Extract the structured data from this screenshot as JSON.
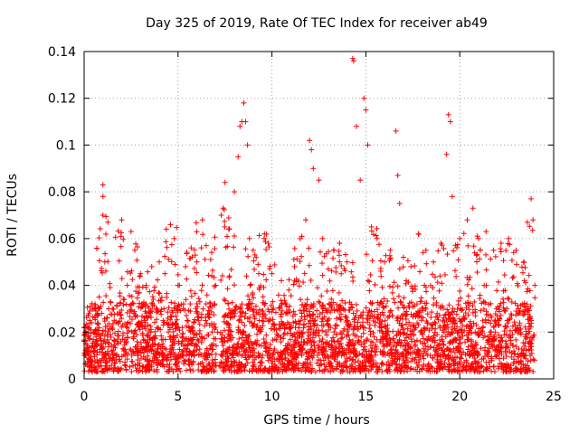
{
  "chart_data": {
    "type": "scatter",
    "title": "Day 325 of 2019, Rate Of TEC Index for receiver ab49",
    "xlabel": "GPS time / hours",
    "ylabel": "ROTI / TECUs",
    "xlim": [
      0,
      25
    ],
    "ylim": [
      0,
      0.14
    ],
    "xticks": [
      0,
      5,
      10,
      15,
      20,
      25
    ],
    "xtick_labels": [
      "0",
      "5",
      "10",
      "15",
      "20",
      "25"
    ],
    "yticks": [
      0,
      0.02,
      0.04,
      0.06,
      0.08,
      0.1,
      0.12,
      0.14
    ],
    "ytick_labels": [
      "0",
      "0.02",
      "0.04",
      "0.06",
      "0.08",
      "0.1",
      "0.12",
      "0.14"
    ],
    "grid": true,
    "marker": "+",
    "color": "#ff0000",
    "data_range_x": [
      0,
      24
    ],
    "series": [
      {
        "name": "ROTI",
        "points": [
          [
            0.1,
            0.015
          ],
          [
            0.3,
            0.025
          ],
          [
            0.5,
            0.02
          ],
          [
            0.8,
            0.035
          ],
          [
            1.0,
            0.083
          ],
          [
            1.0,
            0.078
          ],
          [
            1.0,
            0.07
          ],
          [
            1.1,
            0.05
          ],
          [
            1.3,
            0.03
          ],
          [
            1.6,
            0.025
          ],
          [
            2.0,
            0.068
          ],
          [
            2.3,
            0.04
          ],
          [
            2.5,
            0.063
          ],
          [
            2.7,
            0.055
          ],
          [
            3.0,
            0.045
          ],
          [
            3.3,
            0.04
          ],
          [
            3.6,
            0.048
          ],
          [
            4.0,
            0.05
          ],
          [
            4.3,
            0.045
          ],
          [
            4.6,
            0.066
          ],
          [
            4.8,
            0.06
          ],
          [
            5.0,
            0.04
          ],
          [
            5.4,
            0.048
          ],
          [
            5.7,
            0.056
          ],
          [
            6.0,
            0.05
          ],
          [
            6.3,
            0.068
          ],
          [
            6.5,
            0.057
          ],
          [
            6.8,
            0.044
          ],
          [
            7.0,
            0.04
          ],
          [
            7.1,
            0.02
          ],
          [
            7.3,
            0.07
          ],
          [
            7.4,
            0.073
          ],
          [
            7.5,
            0.084
          ],
          [
            7.7,
            0.064
          ],
          [
            8.0,
            0.08
          ],
          [
            8.2,
            0.095
          ],
          [
            8.3,
            0.108
          ],
          [
            8.4,
            0.11
          ],
          [
            8.5,
            0.118
          ],
          [
            8.6,
            0.11
          ],
          [
            8.7,
            0.1
          ],
          [
            8.8,
            0.06
          ],
          [
            9.0,
            0.055
          ],
          [
            9.3,
            0.045
          ],
          [
            9.6,
            0.062
          ],
          [
            9.8,
            0.058
          ],
          [
            10.0,
            0.045
          ],
          [
            10.5,
            0.042
          ],
          [
            10.9,
            0.038
          ],
          [
            11.2,
            0.048
          ],
          [
            11.5,
            0.06
          ],
          [
            11.8,
            0.068
          ],
          [
            12.0,
            0.102
          ],
          [
            12.1,
            0.098
          ],
          [
            12.2,
            0.09
          ],
          [
            12.5,
            0.085
          ],
          [
            12.7,
            0.06
          ],
          [
            13.0,
            0.047
          ],
          [
            13.3,
            0.055
          ],
          [
            13.6,
            0.058
          ],
          [
            14.0,
            0.05
          ],
          [
            14.3,
            0.137
          ],
          [
            14.35,
            0.136
          ],
          [
            14.5,
            0.108
          ],
          [
            14.7,
            0.085
          ],
          [
            14.9,
            0.12
          ],
          [
            15.0,
            0.115
          ],
          [
            15.1,
            0.1
          ],
          [
            15.3,
            0.065
          ],
          [
            15.6,
            0.06
          ],
          [
            16.0,
            0.05
          ],
          [
            16.3,
            0.055
          ],
          [
            16.6,
            0.106
          ],
          [
            16.7,
            0.087
          ],
          [
            16.8,
            0.075
          ],
          [
            17.0,
            0.052
          ],
          [
            17.4,
            0.048
          ],
          [
            17.8,
            0.062
          ],
          [
            18.2,
            0.055
          ],
          [
            18.6,
            0.05
          ],
          [
            19.0,
            0.058
          ],
          [
            19.3,
            0.096
          ],
          [
            19.4,
            0.113
          ],
          [
            19.5,
            0.11
          ],
          [
            19.6,
            0.078
          ],
          [
            20.0,
            0.06
          ],
          [
            20.4,
            0.068
          ],
          [
            20.7,
            0.073
          ],
          [
            21.0,
            0.06
          ],
          [
            21.4,
            0.063
          ],
          [
            21.8,
            0.055
          ],
          [
            22.2,
            0.058
          ],
          [
            22.6,
            0.06
          ],
          [
            23.0,
            0.055
          ],
          [
            23.4,
            0.05
          ],
          [
            23.8,
            0.077
          ],
          [
            23.9,
            0.068
          ],
          [
            24.0,
            0.04
          ]
        ]
      }
    ]
  }
}
